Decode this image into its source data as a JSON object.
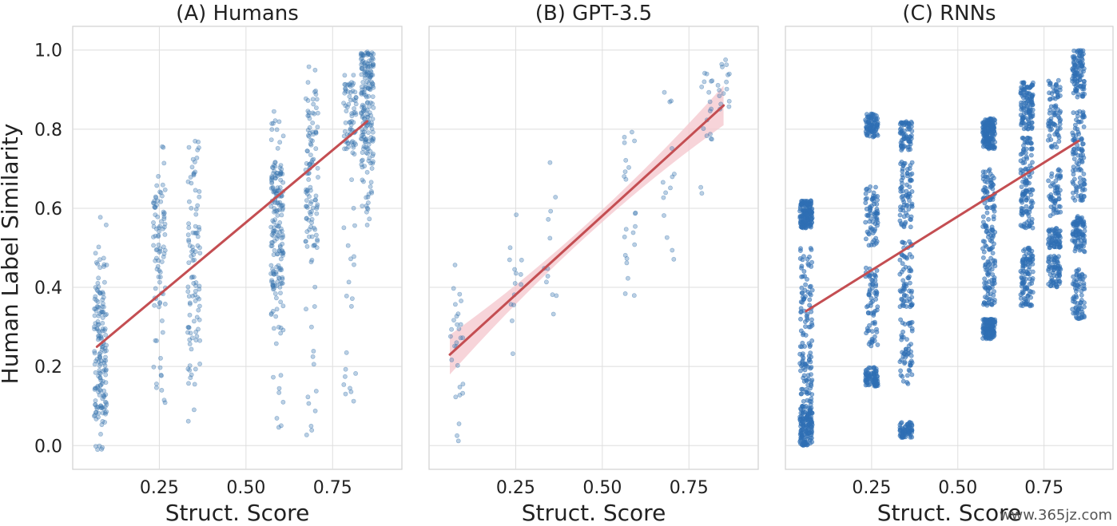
{
  "chart_data": [
    {
      "type": "scatter",
      "title": "(A) Humans",
      "xlabel": "Struct. Score",
      "ylabel": "Human Label Similarity",
      "xlim": [
        -0.0,
        0.95
      ],
      "ylim": [
        -0.06,
        1.06
      ],
      "xticks": [
        "0.25",
        "0.50",
        "0.75"
      ],
      "yticks": [
        "0.0",
        "0.2",
        "0.4",
        "0.6",
        "0.8",
        "1.0"
      ],
      "grid": true,
      "point_color": "#3a75b0",
      "point_opacity": 0.35,
      "regression": {
        "x": [
          0.07,
          0.85
        ],
        "y": [
          0.25,
          0.82
        ],
        "color": "#c44e52",
        "ci": false
      },
      "clusters": [
        {
          "x": 0.08,
          "y_min": -0.02,
          "y_max": 0.58,
          "dense_min": 0.05,
          "dense_max": 0.4,
          "n": 170
        },
        {
          "x": 0.25,
          "y_min": 0.1,
          "y_max": 0.83,
          "dense_min": 0.35,
          "dense_max": 0.65,
          "n": 90
        },
        {
          "x": 0.35,
          "y_min": 0.05,
          "y_max": 0.8,
          "dense_min": 0.15,
          "dense_max": 0.75,
          "n": 100
        },
        {
          "x": 0.59,
          "y_min": 0.04,
          "y_max": 0.86,
          "dense_min": 0.4,
          "dense_max": 0.72,
          "n": 190
        },
        {
          "x": 0.69,
          "y_min": 0.01,
          "y_max": 0.97,
          "dense_min": 0.5,
          "dense_max": 0.9,
          "n": 120
        },
        {
          "x": 0.8,
          "y_min": 0.1,
          "y_max": 0.95,
          "dense_min": 0.75,
          "dense_max": 0.92,
          "n": 90
        },
        {
          "x": 0.85,
          "y_min": 0.55,
          "y_max": 1.0,
          "dense_min": 0.7,
          "dense_max": 1.0,
          "n": 190
        }
      ]
    },
    {
      "type": "scatter",
      "title": "(B) GPT-3.5",
      "xlabel": "Struct. Score",
      "ylabel": "",
      "xlim": [
        -0.0,
        0.95
      ],
      "ylim": [
        -0.06,
        1.06
      ],
      "xticks": [
        "0.25",
        "0.50",
        "0.75"
      ],
      "yticks": [
        "0.0",
        "0.2",
        "0.4",
        "0.6",
        "0.8",
        "1.0"
      ],
      "grid": true,
      "point_color": "#3a75b0",
      "point_opacity": 0.35,
      "regression": {
        "x": [
          0.06,
          0.85
        ],
        "y": [
          0.23,
          0.86
        ],
        "color": "#c44e52",
        "ci": true,
        "ci_color": "#f4c6cc",
        "ci_halfwidth_ends": 0.05,
        "ci_halfwidth_mid": 0.015
      },
      "clusters": [
        {
          "x": 0.08,
          "y_min": 0.01,
          "y_max": 0.5,
          "dense_min": 0.1,
          "dense_max": 0.4,
          "n": 28
        },
        {
          "x": 0.25,
          "y_min": 0.19,
          "y_max": 0.66,
          "dense_min": 0.3,
          "dense_max": 0.6,
          "n": 14
        },
        {
          "x": 0.35,
          "y_min": 0.13,
          "y_max": 0.75,
          "dense_min": 0.35,
          "dense_max": 0.65,
          "n": 12
        },
        {
          "x": 0.58,
          "y_min": 0.36,
          "y_max": 0.87,
          "dense_min": 0.45,
          "dense_max": 0.8,
          "n": 22
        },
        {
          "x": 0.69,
          "y_min": 0.36,
          "y_max": 0.96,
          "dense_min": 0.6,
          "dense_max": 0.9,
          "n": 14
        },
        {
          "x": 0.8,
          "y_min": 0.47,
          "y_max": 1.0,
          "dense_min": 0.75,
          "dense_max": 0.95,
          "n": 18
        },
        {
          "x": 0.85,
          "y_min": 0.7,
          "y_max": 1.0,
          "dense_min": 0.85,
          "dense_max": 0.98,
          "n": 16
        }
      ]
    },
    {
      "type": "scatter",
      "title": "(C) RNNs",
      "xlabel": "Struct. Score",
      "ylabel": "",
      "xlim": [
        -0.0,
        0.95
      ],
      "ylim": [
        -0.06,
        1.06
      ],
      "xticks": [
        "0.25",
        "0.50",
        "0.75"
      ],
      "yticks": [
        "0.0",
        "0.2",
        "0.4",
        "0.6",
        "0.8",
        "1.0"
      ],
      "grid": true,
      "point_color": "#2f6fb4",
      "point_opacity": 0.55,
      "regression": {
        "x": [
          0.06,
          0.85
        ],
        "y": [
          0.34,
          0.77
        ],
        "color": "#c44e52",
        "ci": false
      },
      "clusters": [
        {
          "x": 0.06,
          "bands": [
            [
              0.55,
              0.62
            ],
            [
              0.1,
              0.5
            ],
            [
              0.0,
              0.1
            ]
          ],
          "n": 420
        },
        {
          "x": 0.25,
          "bands": [
            [
              0.78,
              0.84
            ],
            [
              0.5,
              0.66
            ],
            [
              0.25,
              0.45
            ],
            [
              0.15,
              0.2
            ]
          ],
          "n": 300
        },
        {
          "x": 0.35,
          "bands": [
            [
              0.74,
              0.82
            ],
            [
              0.55,
              0.72
            ],
            [
              0.35,
              0.52
            ],
            [
              0.15,
              0.32
            ],
            [
              0.02,
              0.06
            ]
          ],
          "n": 320
        },
        {
          "x": 0.59,
          "bands": [
            [
              0.75,
              0.83
            ],
            [
              0.35,
              0.7
            ],
            [
              0.27,
              0.32
            ]
          ],
          "n": 460
        },
        {
          "x": 0.7,
          "bands": [
            [
              0.8,
              0.92
            ],
            [
              0.55,
              0.78
            ],
            [
              0.35,
              0.5
            ]
          ],
          "n": 340
        },
        {
          "x": 0.78,
          "bands": [
            [
              0.75,
              0.93
            ],
            [
              0.58,
              0.7
            ],
            [
              0.5,
              0.55
            ],
            [
              0.4,
              0.48
            ]
          ],
          "n": 260
        },
        {
          "x": 0.85,
          "bands": [
            [
              0.88,
              1.0
            ],
            [
              0.62,
              0.85
            ],
            [
              0.49,
              0.58
            ],
            [
              0.32,
              0.45
            ]
          ],
          "n": 360
        }
      ]
    }
  ],
  "watermark": "www.365jz.com"
}
